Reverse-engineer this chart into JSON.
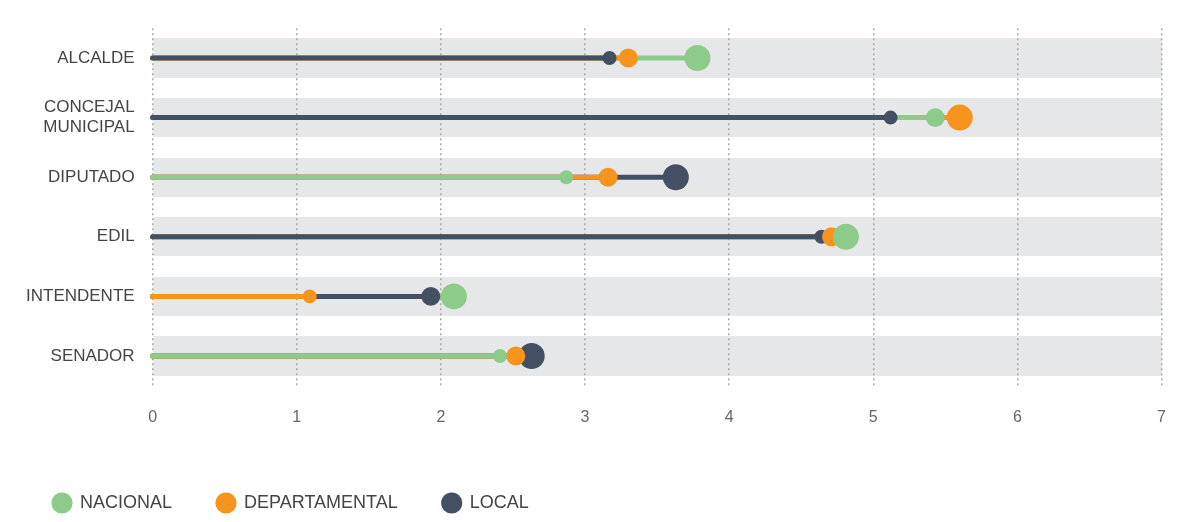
{
  "chart_data": {
    "type": "lollipop",
    "orientation": "horizontal",
    "categories": [
      "ALCALDE",
      "CONCEJAL MUNICIPAL",
      "DIPUTADO",
      "EDIL",
      "INTENDENTE",
      "SENADOR"
    ],
    "series": [
      {
        "name": "NACIONAL",
        "color": "#8ccb8a",
        "values": [
          3.78,
          5.43,
          2.87,
          4.81,
          2.09,
          2.41
        ],
        "sizes": [
          1,
          0.53,
          0.29,
          1,
          1,
          0.29
        ]
      },
      {
        "name": "DEPARTAMENTAL",
        "color": "#f7941d",
        "values": [
          3.3,
          5.6,
          3.16,
          4.71,
          1.09,
          2.52
        ],
        "sizes": [
          0.53,
          1,
          0.53,
          0.53,
          0.29,
          0.53
        ]
      },
      {
        "name": "LOCAL",
        "color": "#434f63",
        "values": [
          3.17,
          5.12,
          3.63,
          4.64,
          1.93,
          2.63
        ],
        "sizes": [
          0.29,
          0.29,
          1,
          0.29,
          0.53,
          1
        ]
      }
    ],
    "xlim": [
      0,
      7
    ],
    "xticks": [
      0,
      1,
      2,
      3,
      4,
      5,
      6,
      7
    ],
    "grid": "x",
    "legend": "bottom",
    "marker": "circle"
  }
}
